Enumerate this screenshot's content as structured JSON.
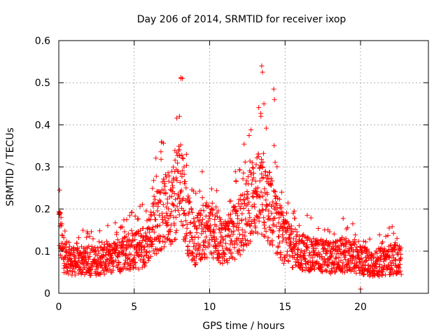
{
  "chart_data": {
    "type": "scatter",
    "title": "Day 206 of 2014, SRMTID for receiver ixop",
    "xlabel": "GPS time / hours",
    "ylabel": "SRMTID / TECUs",
    "xlim": [
      0,
      24.5
    ],
    "ylim": [
      0,
      0.6
    ],
    "x_ticks": [
      0,
      5,
      10,
      15,
      20
    ],
    "x_tick_labels": [
      "0",
      "5",
      "10",
      "15",
      "20"
    ],
    "y_ticks": [
      0,
      0.1,
      0.2,
      0.3,
      0.4,
      0.5,
      0.6
    ],
    "y_tick_labels": [
      "0",
      "0.1",
      "0.2",
      "0.3",
      "0.4",
      "0.5",
      "0.6"
    ],
    "grid": true,
    "marker": "+",
    "marker_color": "#ff0000",
    "series": [
      {
        "name": "SRMTID",
        "profile_description_hours_to_typical_value": [
          [
            0.0,
            0.17
          ],
          [
            0.3,
            0.09
          ],
          [
            1.0,
            0.075
          ],
          [
            2.0,
            0.075
          ],
          [
            3.0,
            0.08
          ],
          [
            3.8,
            0.085
          ],
          [
            4.5,
            0.1
          ],
          [
            5.2,
            0.1
          ],
          [
            5.8,
            0.12
          ],
          [
            6.5,
            0.17
          ],
          [
            7.2,
            0.2
          ],
          [
            7.8,
            0.23
          ],
          [
            8.1,
            0.28
          ],
          [
            8.5,
            0.17
          ],
          [
            9.0,
            0.12
          ],
          [
            9.6,
            0.15
          ],
          [
            10.2,
            0.15
          ],
          [
            11.0,
            0.12
          ],
          [
            11.8,
            0.15
          ],
          [
            12.5,
            0.19
          ],
          [
            13.0,
            0.24
          ],
          [
            13.5,
            0.22
          ],
          [
            14.0,
            0.2
          ],
          [
            14.5,
            0.16
          ],
          [
            15.0,
            0.12
          ],
          [
            16.0,
            0.1
          ],
          [
            17.0,
            0.09
          ],
          [
            18.0,
            0.085
          ],
          [
            19.0,
            0.09
          ],
          [
            20.0,
            0.08
          ],
          [
            21.0,
            0.07
          ],
          [
            22.0,
            0.08
          ],
          [
            22.7,
            0.08
          ]
        ],
        "notable_points": [
          {
            "x": 0.05,
            "y": 0.245
          },
          {
            "x": 4.5,
            "y": 0.175
          },
          {
            "x": 8.1,
            "y": 0.51
          },
          {
            "x": 8.2,
            "y": 0.51
          },
          {
            "x": 13.45,
            "y": 0.54
          },
          {
            "x": 13.5,
            "y": 0.525
          },
          {
            "x": 14.25,
            "y": 0.485
          },
          {
            "x": 14.3,
            "y": 0.46
          },
          {
            "x": 13.6,
            "y": 0.45
          },
          {
            "x": 13.4,
            "y": 0.42
          },
          {
            "x": 8.0,
            "y": 0.42
          },
          {
            "x": 21.9,
            "y": 0.155
          },
          {
            "x": 20.0,
            "y": 0.01
          }
        ],
        "x_range_hours": [
          0.0,
          22.7
        ],
        "approx_point_count": 2000
      }
    ]
  }
}
